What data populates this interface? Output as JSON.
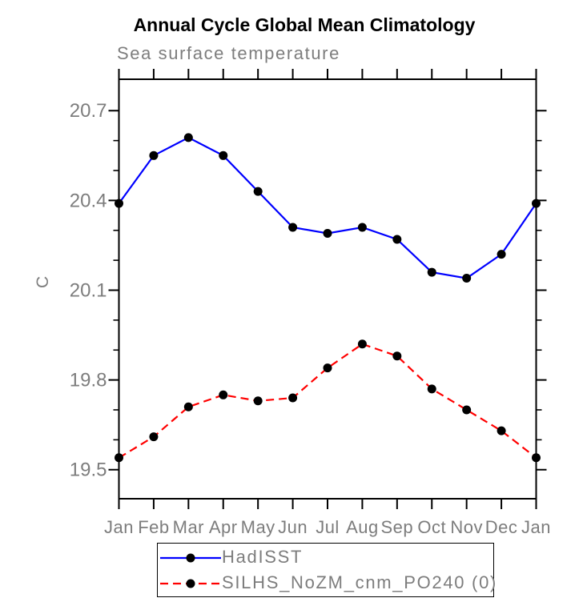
{
  "title": "Annual Cycle Global Mean Climatology",
  "subtitle": "Sea surface temperature",
  "ylabel": "C",
  "colors": {
    "hadisst_line": "#0000ff",
    "silhs_line": "#ff0000",
    "marker": "#000000",
    "axis": "#000000",
    "muted_text": "#7d7d7d",
    "title_text": "#000000"
  },
  "legend": {
    "entries": [
      {
        "label": "HadISST",
        "color": "#0000ff",
        "line_style": "solid"
      },
      {
        "label": "SILHS_NoZM_cnm_PO240 (0)",
        "color": "#ff0000",
        "line_style": "dashed"
      }
    ]
  },
  "chart_data": {
    "type": "line",
    "title": "Annual Cycle Global Mean Climatology",
    "subtitle": "Sea surface temperature",
    "ylabel": "C",
    "categories": [
      "Jan",
      "Feb",
      "Mar",
      "Apr",
      "May",
      "Jun",
      "Jul",
      "Aug",
      "Sep",
      "Oct",
      "Nov",
      "Dec",
      "Jan"
    ],
    "series": [
      {
        "name": "HadISST",
        "color": "#0000ff",
        "line_style": "solid",
        "marker": "filled-circle",
        "marker_color": "#000000",
        "values": [
          20.39,
          20.55,
          20.61,
          20.55,
          20.43,
          20.31,
          20.29,
          20.31,
          20.27,
          20.16,
          20.14,
          20.22,
          20.39
        ]
      },
      {
        "name": "SILHS_NoZM_cnm_PO240 (0)",
        "color": "#ff0000",
        "line_style": "dashed",
        "marker": "filled-circle",
        "marker_color": "#000000",
        "values": [
          19.54,
          19.61,
          19.71,
          19.75,
          19.73,
          19.74,
          19.84,
          19.92,
          19.88,
          19.77,
          19.7,
          19.63,
          19.54
        ]
      }
    ],
    "yticks_major": [
      19.5,
      19.8,
      20.1,
      20.4,
      20.7
    ],
    "ytick_minor_step": 0.1,
    "ylim": [
      19.403,
      20.805
    ],
    "grid": false,
    "legend_position": "bottom",
    "tick_direction": "out"
  }
}
